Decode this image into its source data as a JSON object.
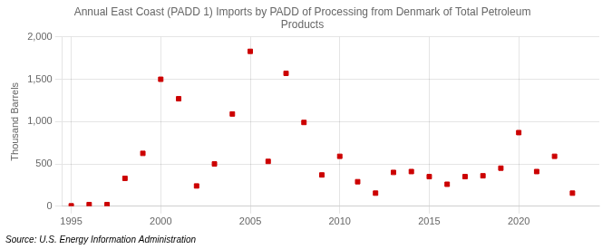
{
  "chart_data": {
    "type": "scatter",
    "title": "Annual East Coast (PADD 1) Imports by PADD of Processing from Denmark of Total Petroleum\nProducts",
    "ylabel": "Thousand Barrels",
    "annotations": [
      "Source: U.S. Energy Information Administration"
    ],
    "x": [
      1995,
      1996,
      1997,
      1998,
      1999,
      2000,
      2001,
      2002,
      2003,
      2004,
      2005,
      2006,
      2007,
      2008,
      2009,
      2010,
      2011,
      2012,
      2013,
      2014,
      2015,
      2016,
      2017,
      2018,
      2019,
      2020,
      2021,
      2022,
      2023
    ],
    "values": [
      5,
      20,
      20,
      330,
      625,
      1500,
      1270,
      240,
      500,
      1090,
      1830,
      530,
      1570,
      990,
      370,
      590,
      290,
      155,
      400,
      410,
      350,
      260,
      350,
      360,
      450,
      870,
      410,
      590,
      155
    ],
    "color": "#cc0000",
    "marker": "square",
    "xlim": [
      1994.5,
      2024.5
    ],
    "xticks": [
      1995,
      2000,
      2005,
      2010,
      2015,
      2020
    ],
    "ylim": [
      0,
      2000
    ],
    "yticks": [
      0,
      500,
      {
        "value": 1000,
        "label": "1,000"
      },
      {
        "value": 1500,
        "label": "1,500"
      },
      {
        "value": 2000,
        "label": "2,000"
      }
    ],
    "grid": true
  }
}
